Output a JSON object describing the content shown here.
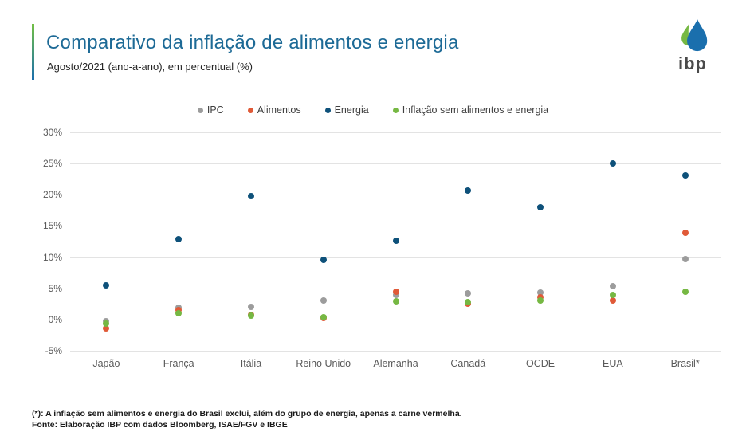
{
  "header": {
    "title": "Comparativo da inflação de alimentos e energia",
    "subtitle": "Agosto/2021 (ano-a-ano), em percentual (%)",
    "logo_text": "ibp"
  },
  "colors": {
    "title": "#1D6A96",
    "ipc": "#9C9C9C",
    "alimentos": "#E05A38",
    "energia": "#0E517A",
    "sem_alimentos_energia": "#76B843",
    "gridline": "#E3E3E3",
    "axis_text": "#595959"
  },
  "chart_data": {
    "type": "scatter",
    "title": "Comparativo da inflação de alimentos e energia",
    "subtitle": "Agosto/2021 (ano-a-ano), em percentual (%)",
    "categories": [
      "Japão",
      "França",
      "Itália",
      "Reino Unido",
      "Alemanha",
      "Canadá",
      "OCDE",
      "EUA",
      "Brasil*"
    ],
    "series": [
      {
        "name": "IPC",
        "color_key": "ipc",
        "values": [
          -0.3,
          1.9,
          2.0,
          3.0,
          3.9,
          4.2,
          4.3,
          5.3,
          9.7
        ]
      },
      {
        "name": "Alimentos",
        "color_key": "alimentos",
        "values": [
          -1.4,
          1.5,
          0.8,
          0.2,
          4.5,
          2.6,
          3.6,
          3.0,
          13.9
        ]
      },
      {
        "name": "Energia",
        "color_key": "energia",
        "values": [
          5.5,
          12.9,
          19.8,
          9.5,
          12.6,
          20.7,
          18.0,
          25.0,
          23.1
        ]
      },
      {
        "name": "Inflação sem alimentos e energia",
        "color_key": "sem_alimentos_energia",
        "values": [
          -0.6,
          1.0,
          0.6,
          0.4,
          2.9,
          2.8,
          3.1,
          4.0,
          4.4
        ]
      }
    ],
    "ylim": [
      -5,
      30
    ],
    "ytick_values": [
      30,
      25,
      20,
      15,
      10,
      5,
      0,
      -5
    ],
    "ytick_labels": [
      "30%",
      "25%",
      "20%",
      "15%",
      "10%",
      "5%",
      "0%",
      "-5%"
    ],
    "grid": true,
    "legend_position": "top"
  },
  "footer": {
    "note": "(*): A inflação sem alimentos e energia do Brasil exclui, além do grupo de energia, apenas a carne vermelha.",
    "source": "Fonte: Elaboração IBP com dados Bloomberg, ISAE/FGV e IBGE"
  }
}
